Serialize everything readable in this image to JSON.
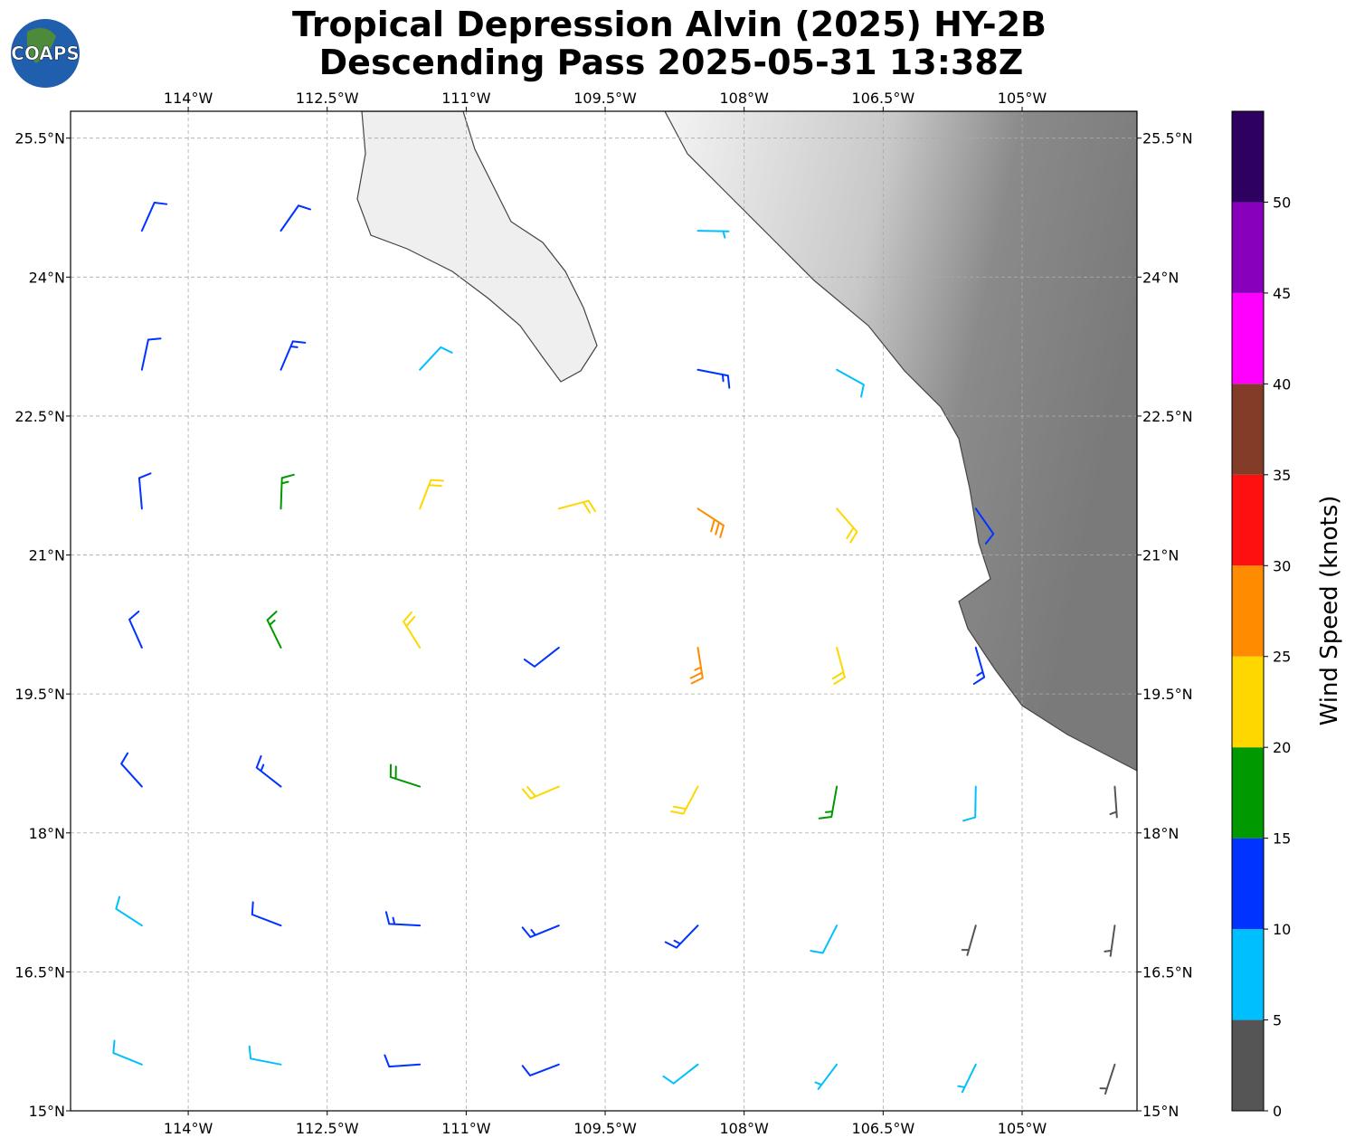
{
  "chart_data": {
    "type": "wind_barbs",
    "title": "Tropical Depression Alvin (2025) HY-2B",
    "subtitle": "Descending Pass 2025-05-31 13:38Z",
    "logo": "COAPS",
    "xlim": [
      -115.27,
      -103.76
    ],
    "ylim": [
      15,
      25.79
    ],
    "xticks": [
      {
        "value": -114,
        "label": "114°W"
      },
      {
        "value": -112.5,
        "label": "112.5°W"
      },
      {
        "value": -111,
        "label": "111°W"
      },
      {
        "value": -109.5,
        "label": "109.5°W"
      },
      {
        "value": -108,
        "label": "108°W"
      },
      {
        "value": -106.5,
        "label": "106.5°W"
      },
      {
        "value": -105,
        "label": "105°W"
      }
    ],
    "yticks": [
      {
        "value": 15,
        "label": "15°N"
      },
      {
        "value": 16.5,
        "label": "16.5°N"
      },
      {
        "value": 18,
        "label": "18°N"
      },
      {
        "value": 19.5,
        "label": "19.5°N"
      },
      {
        "value": 21,
        "label": "21°N"
      },
      {
        "value": 22.5,
        "label": "22.5°N"
      },
      {
        "value": 24,
        "label": "24°N"
      },
      {
        "value": 25.5,
        "label": "25.5°N"
      }
    ],
    "grid": true,
    "colorbar": {
      "label": "Wind Speed (knots)",
      "bounds": [
        0,
        5,
        10,
        15,
        20,
        25,
        30,
        35,
        40,
        45,
        50,
        55
      ],
      "colors": [
        "#555555",
        "#00bfff",
        "#0033ff",
        "#009900",
        "#ffd700",
        "#ff8c00",
        "#ff1010",
        "#823c28",
        "#ff00ff",
        "#8800bb",
        "#2e0060"
      ],
      "ticks": [
        0,
        5,
        10,
        15,
        20,
        25,
        30,
        35,
        40,
        45,
        50
      ]
    },
    "barbs": {
      "lon": [
        -114.5,
        -113,
        -111.5,
        -110,
        -108.5,
        -107,
        -105.5,
        -104,
        -114.5,
        -113,
        -111.5,
        -110,
        -108.5,
        -107,
        -105.5,
        -104,
        -114.5,
        -113,
        -111.5,
        -110,
        -108.5,
        -107,
        -105.5,
        -104,
        -114.5,
        -113,
        -111.5,
        -110,
        -108.5,
        -107,
        -105.5,
        -114.5,
        -113,
        -111.5,
        -110,
        -108.5,
        -107,
        -105.5,
        -114.5,
        -113,
        -111.5,
        -108.5,
        -107,
        -114.5,
        -113,
        -108.5
      ],
      "lat": [
        15.5,
        15.5,
        15.5,
        15.5,
        15.5,
        15.5,
        15.5,
        15.5,
        17,
        17,
        17,
        17,
        17,
        17,
        17,
        17,
        18.5,
        18.5,
        18.5,
        18.5,
        18.5,
        18.5,
        18.5,
        18.5,
        20,
        20,
        20,
        20,
        20,
        20,
        20,
        21.5,
        21.5,
        21.5,
        21.5,
        21.5,
        21.5,
        21.5,
        23,
        23,
        23,
        23,
        23,
        24.5,
        24.5,
        24.5
      ],
      "speed": [
        8,
        8,
        12,
        11,
        8,
        7,
        5,
        3,
        8,
        11,
        14,
        14,
        13,
        9,
        3,
        3,
        11,
        14,
        18,
        22,
        22,
        16,
        9,
        4,
        12,
        16,
        22,
        12,
        26,
        20,
        13,
        11,
        16,
        22,
        22,
        28,
        20,
        10,
        11,
        13,
        8,
        14,
        9,
        12,
        12,
        7
      ],
      "direction": [
        292,
        281,
        266,
        249,
        232,
        217,
        206,
        198,
        303,
        291,
        273,
        248,
        224,
        207,
        196,
        188,
        318,
        308,
        288,
        247,
        208,
        190,
        181,
        176,
        336,
        334,
        328,
        232,
        171,
        165,
        164,
        355,
        2,
        21,
        75,
        123,
        139,
        145,
        12,
        23,
        43,
        101,
        119,
        24,
        35,
        91
      ]
    }
  }
}
